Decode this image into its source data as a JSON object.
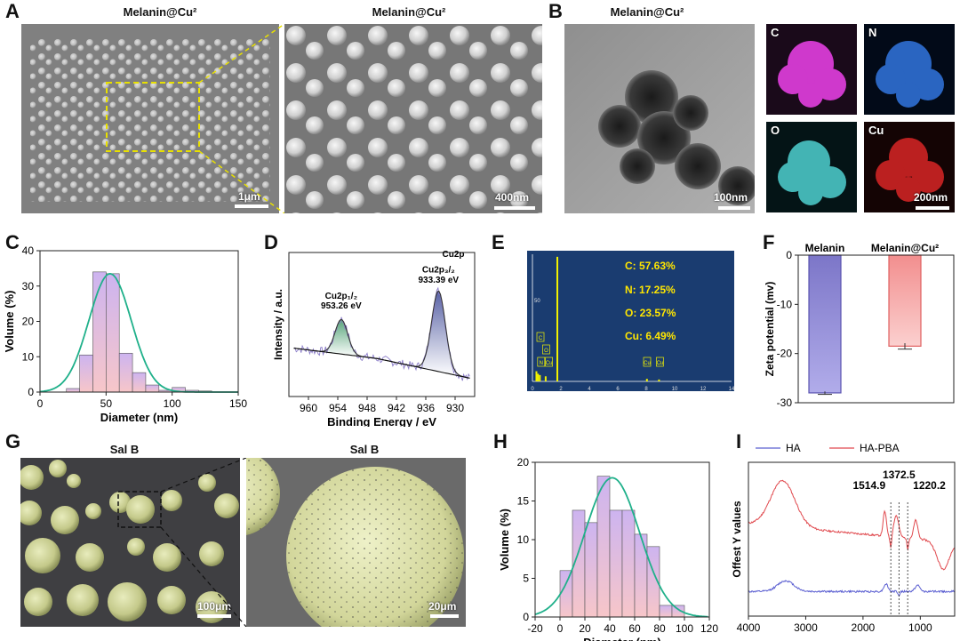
{
  "panels": {
    "A": {
      "label": "A",
      "title_left": "Melanin@Cu²",
      "title_right": "Melanin@Cu²",
      "scale_left": "1μm",
      "scale_right": "400nm"
    },
    "B": {
      "label": "B",
      "title": "Melanin@Cu²",
      "scale_main": "100nm",
      "map_labels": [
        "C",
        "N",
        "O",
        "Cu"
      ],
      "scale_map": "200nm"
    },
    "C": {
      "label": "C"
    },
    "D": {
      "label": "D"
    },
    "E": {
      "label": "E"
    },
    "F": {
      "label": "F"
    },
    "G": {
      "label": "G",
      "title_left": "Sal B",
      "title_right": "Sal B",
      "scale_left": "100μm",
      "scale_right": "20μm"
    },
    "H": {
      "label": "H"
    },
    "I": {
      "label": "I"
    }
  },
  "chart_data": [
    {
      "panel": "C",
      "type": "bar",
      "xlabel": "Diameter (nm)",
      "ylabel": "Volume (%)",
      "xlim": [
        0,
        150
      ],
      "ylim": [
        0,
        40
      ],
      "xticks": [
        0,
        50,
        100,
        150
      ],
      "yticks": [
        0,
        10,
        20,
        30,
        40
      ],
      "bins": [
        [
          20,
          30,
          1
        ],
        [
          30,
          40,
          10.5
        ],
        [
          40,
          50,
          34
        ],
        [
          50,
          60,
          33.5
        ],
        [
          60,
          70,
          11
        ],
        [
          70,
          80,
          5.5
        ],
        [
          80,
          90,
          2
        ],
        [
          90,
          100,
          0.5
        ],
        [
          100,
          110,
          1.3
        ],
        [
          110,
          120,
          0.5
        ],
        [
          120,
          130,
          0.3
        ]
      ],
      "fit": {
        "type": "gaussian",
        "mean": 53,
        "sigma": 16,
        "peak": 33.5
      }
    },
    {
      "panel": "D",
      "type": "line",
      "xlabel": "Binding Energy / eV",
      "ylabel": "Intensity / a.u.",
      "xlim": [
        964,
        926
      ],
      "xticks": [
        960,
        954,
        948,
        942,
        936,
        930
      ],
      "annotations": [
        {
          "text": "Cu2p",
          "x": 928.5,
          "y": 0.97
        },
        {
          "text": "Cu2p₃/₂",
          "x": 933.4,
          "y": 0.86
        },
        {
          "text": "933.39 eV",
          "x": 933.4,
          "y": 0.79
        },
        {
          "text": "Cu2p₁/₂",
          "x": 953.3,
          "y": 0.68
        },
        {
          "text": "953.26 eV",
          "x": 953.3,
          "y": 0.61
        }
      ],
      "peaks": [
        {
          "center": 953.26,
          "height": 0.24,
          "width": 1.3
        },
        {
          "center": 933.39,
          "height": 0.56,
          "width": 1.4
        }
      ]
    },
    {
      "panel": "E",
      "type": "bar",
      "xticks": [
        0,
        2,
        4,
        6,
        8,
        10,
        12,
        14
      ],
      "ytick": "50",
      "element_markers": [
        "C",
        "O",
        "N",
        "Cu",
        "Cu",
        "Cu"
      ],
      "stats": [
        "C: 57.63%",
        "N: 17.25%",
        "O: 23.57%",
        "Cu: 6.49%"
      ]
    },
    {
      "panel": "F",
      "type": "bar",
      "ylabel": "Zeta potential (mv)",
      "ylim": [
        -30,
        0
      ],
      "yticks": [
        0,
        -10,
        -20,
        -30
      ],
      "categories": [
        "Melanin",
        "Melanin@Cu²"
      ],
      "values": [
        -28,
        -18.5
      ],
      "errors": [
        0.3,
        0.6
      ],
      "colors": [
        "#8c87d0",
        "#f7a9a8"
      ]
    },
    {
      "panel": "H",
      "type": "bar",
      "xlabel": "Diameter (nm)",
      "ylabel": "Volume (%)",
      "xlim": [
        -20,
        120
      ],
      "ylim": [
        0,
        20
      ],
      "xticks": [
        -20,
        0,
        20,
        40,
        60,
        80,
        100,
        120
      ],
      "yticks": [
        0,
        5,
        10,
        15,
        20
      ],
      "bins": [
        [
          0,
          10,
          6
        ],
        [
          10,
          20,
          13.8
        ],
        [
          20,
          30,
          12.2
        ],
        [
          30,
          40,
          18.2
        ],
        [
          40,
          50,
          13.8
        ],
        [
          50,
          60,
          13.8
        ],
        [
          60,
          70,
          10.7
        ],
        [
          70,
          80,
          9.1
        ],
        [
          80,
          90,
          1.5
        ],
        [
          90,
          100,
          1.5
        ]
      ],
      "fit": {
        "type": "gaussian",
        "mean": 42,
        "sigma": 22,
        "peak": 18
      }
    },
    {
      "panel": "I",
      "type": "line",
      "ylabel": "Offest Y values",
      "xlim": [
        4000,
        400
      ],
      "xticks": [
        4000,
        3000,
        2000,
        1000
      ],
      "series": [
        {
          "name": "HA",
          "color": "#5b5fd1"
        },
        {
          "name": "HA-PBA",
          "color": "#e0484d"
        }
      ],
      "annotations": [
        {
          "text": "1514.9",
          "x": 1514.9
        },
        {
          "text": "1372.5",
          "x": 1372.5
        },
        {
          "text": "1220.2",
          "x": 1220.2
        }
      ]
    }
  ]
}
